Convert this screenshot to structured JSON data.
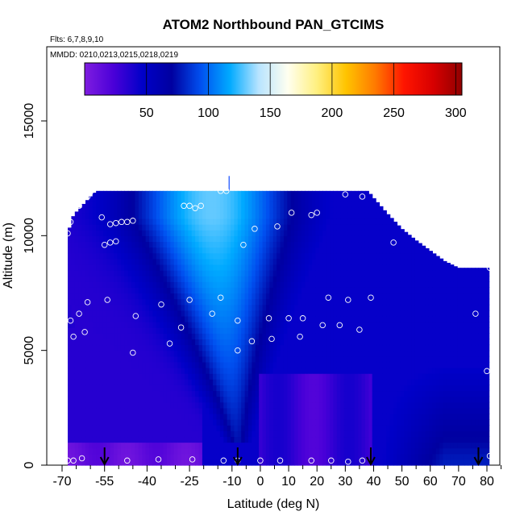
{
  "chart_data": {
    "type": "heatmap",
    "title": "ATOM2 Northbound PAN_GTCIMS",
    "subtitle_flights": "Flts: 6,7,8,9,10",
    "subtitle_dates": "MMDD: 0210,0213,0215,0218,0219",
    "xlabel": "Latitude (deg N)",
    "ylabel": "Altitude (m)",
    "xlim": [
      -70,
      85
    ],
    "ylim": [
      0,
      17500
    ],
    "x_ticks": [
      -70,
      -55,
      -40,
      -25,
      -10,
      0,
      10,
      20,
      30,
      40,
      50,
      60,
      70,
      80
    ],
    "x_minor_ticks": [
      -65,
      -60,
      -50,
      -45,
      -35,
      -30,
      -20,
      -15,
      -5,
      5,
      15,
      25,
      35,
      45,
      55,
      65,
      75,
      85
    ],
    "y_ticks": [
      0,
      5000,
      10000,
      15000
    ],
    "colorbar": {
      "min": 0,
      "max": 305,
      "ticks": [
        50,
        100,
        150,
        200,
        250,
        300
      ],
      "colors": [
        "#7f1de0",
        "#4a00d8",
        "#0000c8",
        "#0000a0",
        "#0050f0",
        "#00aaff",
        "#b8e4ff",
        "#fffff0",
        "#fff080",
        "#ffc400",
        "#ff7b00",
        "#ff1500",
        "#d80000",
        "#900000"
      ]
    },
    "field": {
      "ceiling": [
        [
          -68,
          10100
        ],
        [
          -66,
          10900
        ],
        [
          -63,
          11300
        ],
        [
          -60,
          11700
        ],
        [
          -58,
          11950
        ],
        [
          -10,
          11950
        ],
        [
          10,
          11950
        ],
        [
          30,
          11950
        ],
        [
          38,
          11950
        ],
        [
          40,
          11650
        ],
        [
          45,
          10950
        ],
        [
          50,
          10300
        ],
        [
          55,
          9800
        ],
        [
          60,
          9350
        ],
        [
          65,
          8900
        ],
        [
          70,
          8600
        ],
        [
          75,
          8600
        ],
        [
          80,
          8600
        ]
      ],
      "plume": {
        "lat_center_top": -17,
        "lat_center_bottom": -8,
        "base_alt": 1000,
        "core_top_alt": 10800
      },
      "north_surface_region": {
        "lat_start": 40,
        "lat_end": 80,
        "max_alt": 5000
      }
    },
    "observations": [
      [
        -68,
        10100
      ],
      [
        -67,
        10600
      ],
      [
        -64,
        11300
      ],
      [
        -60,
        11900
      ],
      [
        -61,
        11700
      ],
      [
        -56,
        10800
      ],
      [
        -53,
        10500
      ],
      [
        -51,
        10550
      ],
      [
        -49,
        10600
      ],
      [
        -47,
        10600
      ],
      [
        -45,
        10650
      ],
      [
        -55,
        9600
      ],
      [
        -53,
        9700
      ],
      [
        -51,
        9750
      ],
      [
        -27,
        11300
      ],
      [
        -25,
        11300
      ],
      [
        -23,
        11200
      ],
      [
        -21,
        11300
      ],
      [
        -14,
        11950
      ],
      [
        -12,
        11950
      ],
      [
        -6,
        9600
      ],
      [
        -2,
        10300
      ],
      [
        6,
        10400
      ],
      [
        11,
        11000
      ],
      [
        18,
        10900
      ],
      [
        20,
        11000
      ],
      [
        30,
        11800
      ],
      [
        36,
        11700
      ],
      [
        41,
        11950
      ],
      [
        47,
        9700
      ],
      [
        -67,
        6300
      ],
      [
        -66,
        5600
      ],
      [
        -64,
        6600
      ],
      [
        -62,
        5800
      ],
      [
        -61,
        7100
      ],
      [
        -54,
        7200
      ],
      [
        -44,
        6500
      ],
      [
        -45,
        4900
      ],
      [
        -35,
        7000
      ],
      [
        -32,
        5300
      ],
      [
        -28,
        6000
      ],
      [
        -25,
        7200
      ],
      [
        -17,
        6600
      ],
      [
        -14,
        7300
      ],
      [
        -8,
        5000
      ],
      [
        -8,
        6300
      ],
      [
        -3,
        5400
      ],
      [
        3,
        6400
      ],
      [
        4,
        5500
      ],
      [
        10,
        6400
      ],
      [
        14,
        5600
      ],
      [
        15,
        6400
      ],
      [
        22,
        6100
      ],
      [
        24,
        7300
      ],
      [
        28,
        6100
      ],
      [
        31,
        7200
      ],
      [
        35,
        5900
      ],
      [
        39,
        7300
      ],
      [
        76,
        6600
      ],
      [
        80,
        4100
      ],
      [
        81,
        8600
      ],
      [
        -68,
        200
      ],
      [
        -66,
        200
      ],
      [
        -63,
        300
      ],
      [
        -47,
        200
      ],
      [
        -36,
        250
      ],
      [
        -24,
        250
      ],
      [
        -13,
        200
      ],
      [
        -8,
        200
      ],
      [
        0,
        200
      ],
      [
        7,
        200
      ],
      [
        18,
        200
      ],
      [
        25,
        200
      ],
      [
        31,
        150
      ],
      [
        36,
        200
      ],
      [
        81,
        400
      ]
    ],
    "arrows_at_lat": [
      -55,
      -8,
      39,
      77
    ]
  }
}
